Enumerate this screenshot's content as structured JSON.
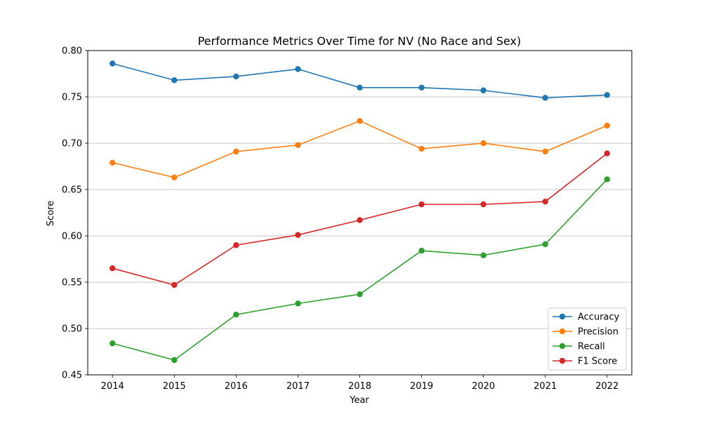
{
  "chart_data": {
    "type": "line",
    "title": "Performance Metrics Over Time for NV (No Race and Sex)",
    "xlabel": "Year",
    "ylabel": "Score",
    "x": [
      2014,
      2015,
      2016,
      2017,
      2018,
      2019,
      2020,
      2021,
      2022
    ],
    "xlim": [
      2013.6,
      2022.4
    ],
    "ylim": [
      0.45,
      0.8
    ],
    "yticks": [
      0.45,
      0.5,
      0.55,
      0.6,
      0.65,
      0.7,
      0.75,
      0.8
    ],
    "ytick_labels": [
      "0.45",
      "0.50",
      "0.55",
      "0.60",
      "0.65",
      "0.70",
      "0.75",
      "0.80"
    ],
    "xtick_labels": [
      "2014",
      "2015",
      "2016",
      "2017",
      "2018",
      "2019",
      "2020",
      "2021",
      "2022"
    ],
    "grid": "horizontal",
    "legend_position": "lower-right",
    "marker": "circle",
    "series": [
      {
        "name": "Accuracy",
        "color": "#1f77b4",
        "values": [
          0.786,
          0.768,
          0.772,
          0.78,
          0.76,
          0.76,
          0.757,
          0.749,
          0.752
        ]
      },
      {
        "name": "Precision",
        "color": "#ff7f0e",
        "values": [
          0.679,
          0.663,
          0.691,
          0.698,
          0.724,
          0.694,
          0.7,
          0.691,
          0.719
        ]
      },
      {
        "name": "Recall",
        "color": "#2ca02c",
        "values": [
          0.484,
          0.466,
          0.515,
          0.527,
          0.537,
          0.584,
          0.579,
          0.591,
          0.661
        ]
      },
      {
        "name": "F1 Score",
        "color": "#d62728",
        "values": [
          0.565,
          0.547,
          0.59,
          0.601,
          0.617,
          0.634,
          0.634,
          0.637,
          0.689
        ]
      }
    ]
  }
}
